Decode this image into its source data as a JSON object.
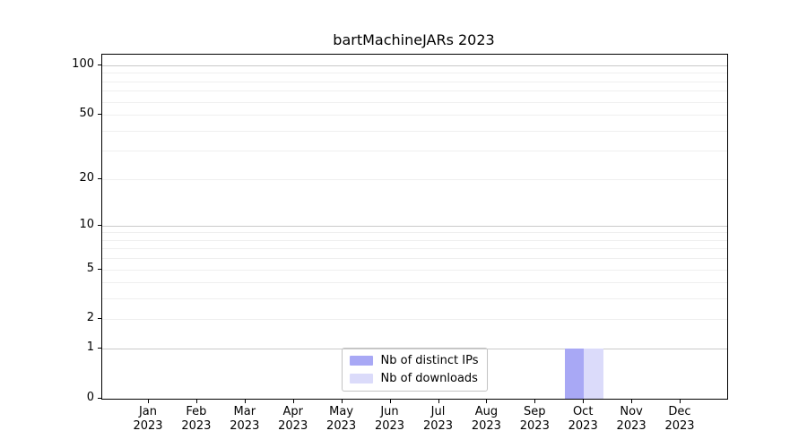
{
  "chart_data": {
    "type": "bar",
    "title": "bartMachineJARs 2023",
    "xlabel": "",
    "ylabel": "",
    "categories": [
      "Jan 2023",
      "Feb 2023",
      "Mar 2023",
      "Apr 2023",
      "May 2023",
      "Jun 2023",
      "Jul 2023",
      "Aug 2023",
      "Sep 2023",
      "Oct 2023",
      "Nov 2023",
      "Dec 2023"
    ],
    "series": [
      {
        "name": "Nb of distinct IPs",
        "color": "#a8a8f5",
        "values": [
          0,
          0,
          0,
          0,
          0,
          0,
          0,
          0,
          0,
          1,
          0,
          0
        ]
      },
      {
        "name": "Nb of downloads",
        "color": "#dbdbfa",
        "values": [
          0,
          0,
          0,
          0,
          0,
          0,
          0,
          0,
          0,
          1,
          0,
          0
        ]
      }
    ],
    "yscale": "log1p",
    "ylim": [
      0,
      116
    ],
    "yticks": [
      0,
      1,
      2,
      5,
      10,
      20,
      50,
      100
    ],
    "ygrid_major": [
      1,
      10,
      100
    ],
    "ygrid_minor": [
      2,
      3,
      4,
      5,
      6,
      7,
      8,
      9,
      20,
      30,
      40,
      50,
      60,
      70,
      80,
      90
    ],
    "grid": true,
    "legend_position": "lower center"
  }
}
